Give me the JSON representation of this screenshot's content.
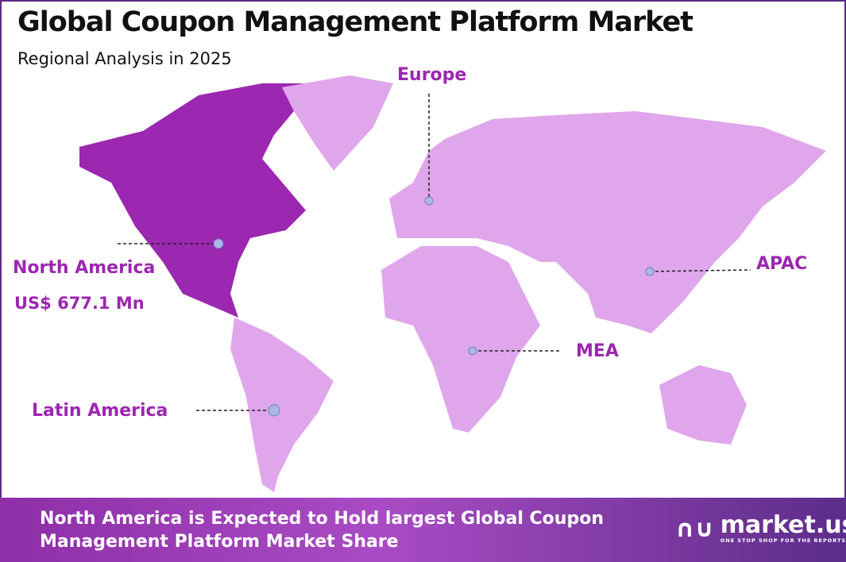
{
  "title": "Global Coupon Management Platform Market",
  "subtitle": "Regional Analysis in 2025",
  "colors": {
    "highlight": "#9c27b0",
    "land": "#e0a6ec",
    "label": "#9c27b0",
    "pin": "#a9b8e8"
  },
  "regions": {
    "north_america": {
      "label": "North America",
      "value": "US$ 677.1 Mn",
      "highlighted": true
    },
    "europe": {
      "label": "Europe"
    },
    "apac": {
      "label": "APAC"
    },
    "mea": {
      "label": "MEA"
    },
    "latin_america": {
      "label": "Latin America"
    }
  },
  "banner": {
    "text": "North America is Expected to Hold largest Global Coupon Management Platform Market Share"
  },
  "logo": {
    "name": "market.us",
    "tagline": "ONE STOP SHOP FOR THE REPORTS"
  }
}
